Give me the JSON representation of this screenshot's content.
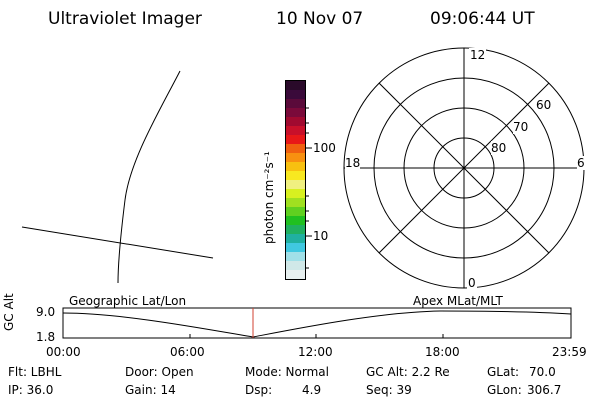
{
  "header": {
    "instrument": "Ultraviolet Imager",
    "date": "10 Nov 07",
    "time": "09:06:44 UT"
  },
  "geo_panel": {
    "label": "Geographic Lat/Lon"
  },
  "colorbar": {
    "unit_label": "photon cm⁻²s⁻¹",
    "ticks": [
      "100",
      "10"
    ],
    "scale": "log",
    "colors": [
      "#2a0a2a",
      "#3a0a3a",
      "#5a0a3a",
      "#7a0a3a",
      "#a00a30",
      "#c8102a",
      "#e81818",
      "#f06010",
      "#f89010",
      "#f8c010",
      "#f8e820",
      "#f0f080",
      "#d8f020",
      "#a0e020",
      "#60d020",
      "#20c020",
      "#20b060",
      "#20b0a0",
      "#40c8e0",
      "#a0e0e8",
      "#d0e8e8",
      "#e8f0f0"
    ]
  },
  "polar_plot": {
    "top_label": "12",
    "left_label": "18",
    "right_label": "6",
    "bottom_label": "0",
    "ring_labels": [
      "60",
      "70",
      "80"
    ],
    "title": "Apex MLat/MLT"
  },
  "altitude_plot": {
    "ylabel": "GC Alt",
    "y_top": "9.0",
    "y_bottom": "1.8",
    "x_ticks": [
      "00:00",
      "06:00",
      "12:00",
      "18:00",
      "23:59"
    ],
    "marker_color": "#d04030"
  },
  "info": {
    "flt": "Flt: LBHL",
    "door": "Door: Open",
    "mode": "Mode: Normal",
    "gc_alt": "GC Alt: 2.2 Re",
    "glat_label": "GLat:",
    "glat_value": "70.0",
    "ip": "IP: 36.0",
    "gain": "Gain: 14",
    "dsp_label": "Dsp:",
    "dsp_value": "4.9",
    "seq": "Seq: 39",
    "glon_label": "GLon:",
    "glon_value": "306.7"
  }
}
